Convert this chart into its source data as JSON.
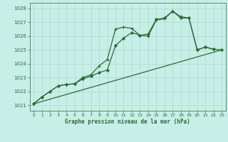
{
  "bg_color": "#c8eee8",
  "grid_color": "#b0d8cc",
  "line_color": "#2d6a35",
  "xlabel": "Graphe pression niveau de la mer (hPa)",
  "ylim": [
    1020.6,
    1028.4
  ],
  "xlim": [
    -0.5,
    23.5
  ],
  "yticks": [
    1021,
    1022,
    1023,
    1024,
    1025,
    1026,
    1027,
    1028
  ],
  "xticks": [
    0,
    1,
    2,
    3,
    4,
    5,
    6,
    7,
    8,
    9,
    10,
    11,
    12,
    13,
    14,
    15,
    16,
    17,
    18,
    19,
    20,
    21,
    22,
    23
  ],
  "series0": {
    "x": [
      0,
      1,
      2,
      3,
      4,
      5,
      6,
      7,
      8,
      9,
      10,
      11,
      12,
      13,
      14,
      15,
      16,
      17,
      18,
      19,
      20,
      21,
      22
    ],
    "y": [
      1021.1,
      1021.6,
      1022.0,
      1022.4,
      1022.5,
      1022.55,
      1023.0,
      1023.2,
      1023.85,
      1024.3,
      1026.5,
      1026.65,
      1026.55,
      1026.05,
      1026.0,
      1027.15,
      1027.25,
      1027.8,
      1027.4,
      1027.3,
      1025.0,
      1025.2,
      1025.05
    ]
  },
  "series1": {
    "x": [
      0,
      1,
      2,
      3,
      4,
      5,
      6,
      7,
      8,
      9,
      10,
      11,
      12,
      13,
      14,
      15,
      16,
      17,
      18,
      19,
      20,
      21,
      22,
      23
    ],
    "y": [
      1021.1,
      1021.6,
      1022.0,
      1022.4,
      1022.5,
      1022.55,
      1022.9,
      1023.1,
      1023.35,
      1023.55,
      1025.3,
      1025.85,
      1026.25,
      1026.05,
      1026.15,
      1027.2,
      1027.3,
      1027.8,
      1027.3,
      1027.3,
      1025.0,
      1025.2,
      1025.05,
      1025.0
    ]
  },
  "series2": {
    "x": [
      0,
      23
    ],
    "y": [
      1021.1,
      1025.0
    ]
  }
}
